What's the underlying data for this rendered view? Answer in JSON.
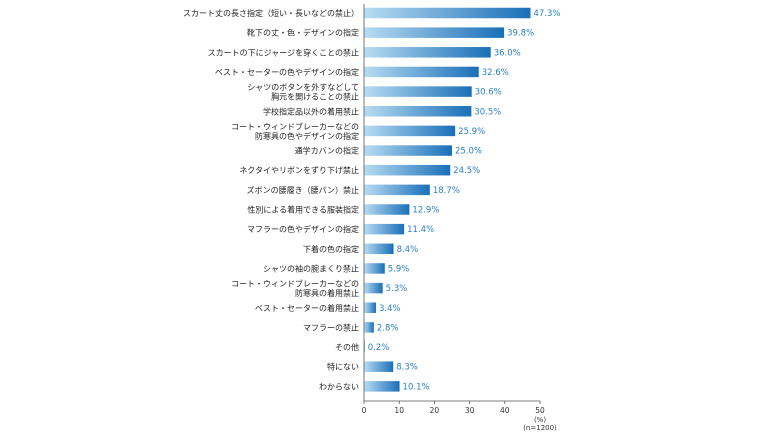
{
  "chart_data": {
    "type": "bar",
    "orientation": "horizontal",
    "categories": [
      [
        "スカート丈の長さ指定（短い・長いなどの禁止）"
      ],
      [
        "靴下の丈・色・デザインの指定"
      ],
      [
        "スカートの下にジャージを穿くことの禁止"
      ],
      [
        "ベスト・セーターの色やデザインの指定"
      ],
      [
        "シャツのボタンを外すなどして",
        "胸元を開けることの禁止"
      ],
      [
        "学校指定品以外の着用禁止"
      ],
      [
        "コート・ウィンドブレーカーなどの",
        "防寒具の色やデザインの指定"
      ],
      [
        "通学カバンの指定"
      ],
      [
        "ネクタイやリボンをずり下げ禁止"
      ],
      [
        "ズボンの腰履き（腰パン）禁止"
      ],
      [
        "性別による着用できる服装指定"
      ],
      [
        "マフラーの色やデザインの指定"
      ],
      [
        "下着の色の指定"
      ],
      [
        "シャツの袖の腕まくり禁止"
      ],
      [
        "コート・ウィンドブレーカーなどの",
        "防寒具の着用禁止"
      ],
      [
        "ベスト・セーターの着用禁止"
      ],
      [
        "マフラーの禁止"
      ],
      [
        "その他"
      ],
      [
        "特にない"
      ],
      [
        "わからない"
      ]
    ],
    "values": [
      47.3,
      39.8,
      36.0,
      32.6,
      30.6,
      30.5,
      25.9,
      25.0,
      24.5,
      18.7,
      12.9,
      11.4,
      8.4,
      5.9,
      5.3,
      3.4,
      2.8,
      0.2,
      8.3,
      10.1
    ],
    "value_labels": [
      "47.3%",
      "39.8%",
      "36.0%",
      "32.6%",
      "30.6%",
      "30.5%",
      "25.9%",
      "25.0%",
      "24.5%",
      "18.7%",
      "12.9%",
      "11.4%",
      "8.4%",
      "5.9%",
      "5.3%",
      "3.4%",
      "2.8%",
      "0.2%",
      "8.3%",
      "10.1%"
    ],
    "x_ticks": [
      "0",
      "10",
      "20",
      "30",
      "40",
      "50"
    ],
    "xlim": [
      0,
      50
    ],
    "unit_label": "(%)",
    "sample_note": "(n=1200)",
    "grid": false,
    "colors": {
      "bar_start": "#b8dcf2",
      "bar_end": "#1a6fb8",
      "value_text": "#2a7fc4",
      "axis": "#555555"
    }
  }
}
